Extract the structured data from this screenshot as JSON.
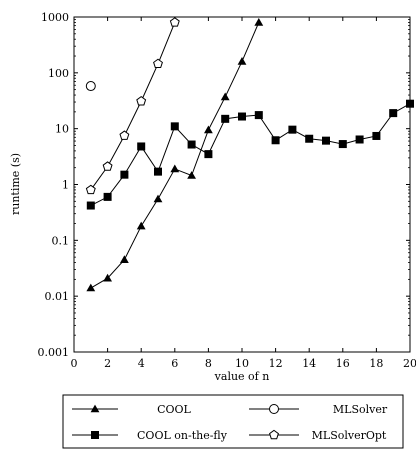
{
  "chart_data": {
    "type": "line",
    "title": "",
    "xlabel": "value of n",
    "ylabel": "runtime (s)",
    "xlim": [
      0,
      20
    ],
    "ylim": [
      0.001,
      1000
    ],
    "yscale": "log",
    "grid": false,
    "legend_position": "below",
    "x_ticks": [
      "0",
      "2",
      "4",
      "6",
      "8",
      "10",
      "12",
      "14",
      "16",
      "18",
      "20"
    ],
    "y_ticks": [
      "0.001",
      "0.01",
      "0.1",
      "1",
      "10",
      "100",
      "1000"
    ],
    "series": [
      {
        "name": "COOL",
        "marker": "triangle-filled",
        "x": [
          1,
          2,
          3,
          4,
          5,
          6,
          7,
          8,
          9,
          10,
          11
        ],
        "y": [
          0.014,
          0.021,
          0.045,
          0.18,
          0.55,
          1.9,
          1.45,
          9.5,
          37,
          160,
          800
        ]
      },
      {
        "name": "MLSolver",
        "marker": "circle-open",
        "line": false,
        "x": [
          1
        ],
        "y": [
          58
        ]
      },
      {
        "name": "COOL on-the-fly",
        "marker": "square-filled",
        "x": [
          1,
          2,
          3,
          4,
          5,
          6,
          7,
          8,
          9,
          10,
          11,
          12,
          13,
          14,
          15,
          16,
          17,
          18,
          19,
          20
        ],
        "y": [
          0.42,
          0.6,
          1.5,
          4.8,
          1.7,
          11,
          5.2,
          3.5,
          15,
          16.5,
          17.5,
          6.2,
          9.6,
          6.6,
          6.1,
          5.3,
          6.4,
          7.4,
          19,
          28
        ]
      },
      {
        "name": "MLSolverOpt",
        "marker": "pentagon-open",
        "x": [
          1,
          2,
          3,
          4,
          5,
          6
        ],
        "y": [
          0.8,
          2.1,
          7.5,
          31,
          145,
          800
        ]
      }
    ]
  }
}
